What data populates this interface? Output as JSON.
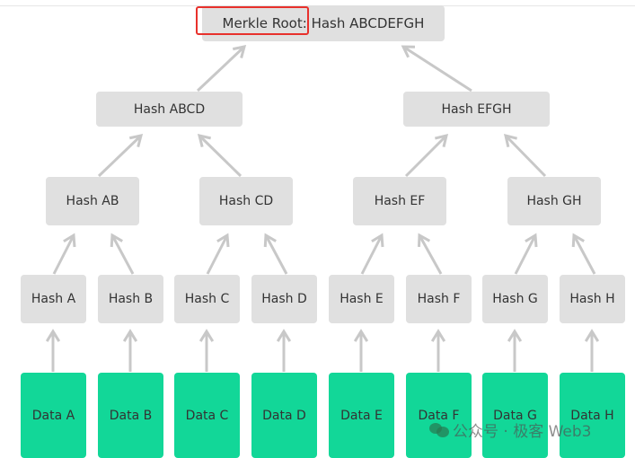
{
  "root": {
    "prefix": "Merkle Root:",
    "label": "Hash ABCDEFGH"
  },
  "level2": [
    "Hash ABCD",
    "Hash EFGH"
  ],
  "level3": [
    "Hash AB",
    "Hash CD",
    "Hash EF",
    "Hash GH"
  ],
  "leaves": [
    "Hash A",
    "Hash B",
    "Hash C",
    "Hash D",
    "Hash E",
    "Hash F",
    "Hash G",
    "Hash H"
  ],
  "data": [
    "Data A",
    "Data B",
    "Data C",
    "Data D",
    "Data E",
    "Data F",
    "Data G",
    "Data H"
  ],
  "highlight": "Merkle Root:",
  "watermark": "公众号 · 极客 Web3",
  "colors": {
    "node": "#e0e0e0",
    "data": "#12d798",
    "arrow": "#c8c8c8",
    "highlight": "#e8312c"
  }
}
